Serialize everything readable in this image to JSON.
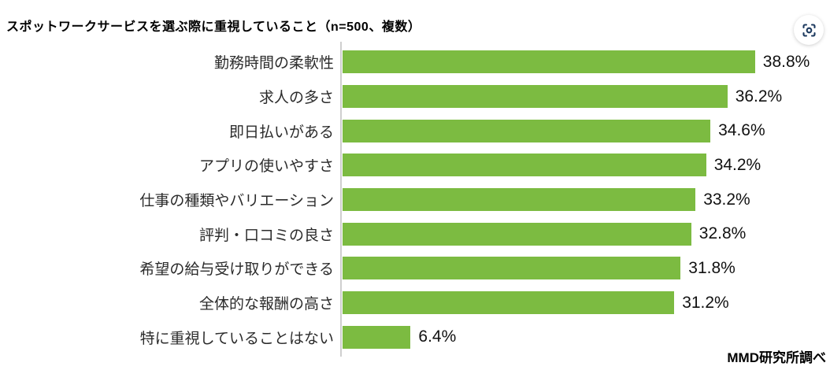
{
  "title": "スポットワークサービスを選ぶ際に重視していること（n=500、複数）",
  "source_note": "MMD研究所調べ",
  "icons": {
    "lens_button": "image-search-scan-icon"
  },
  "colors": {
    "bar": "#7cbb41",
    "axis": "#cfcfcf",
    "icon": "#1d3a5f",
    "title_text": "#000000",
    "value_text": "#111111"
  },
  "chart_data": {
    "type": "bar",
    "orientation": "horizontal",
    "title": "スポットワークサービスを選ぶ際に重視していること（n=500、複数）",
    "categories": [
      "勤務時間の柔軟性",
      "求人の多さ",
      "即日払いがある",
      "アプリの使いやすさ",
      "仕事の種類やバリエーション",
      "評判・口コミの良さ",
      "希望の給与受け取りができる",
      "全体的な報酬の高さ",
      "特に重視していることはない"
    ],
    "values": [
      38.8,
      36.2,
      34.6,
      34.2,
      33.2,
      32.8,
      31.8,
      31.2,
      6.4
    ],
    "value_labels": [
      "38.8%",
      "36.2%",
      "34.6%",
      "34.2%",
      "33.2%",
      "32.8%",
      "31.8%",
      "31.2%",
      "6.4%"
    ],
    "xlabel": "",
    "ylabel": "",
    "xlim": [
      0,
      40
    ],
    "grid": false,
    "legend": false,
    "source": "MMD研究所調べ"
  }
}
